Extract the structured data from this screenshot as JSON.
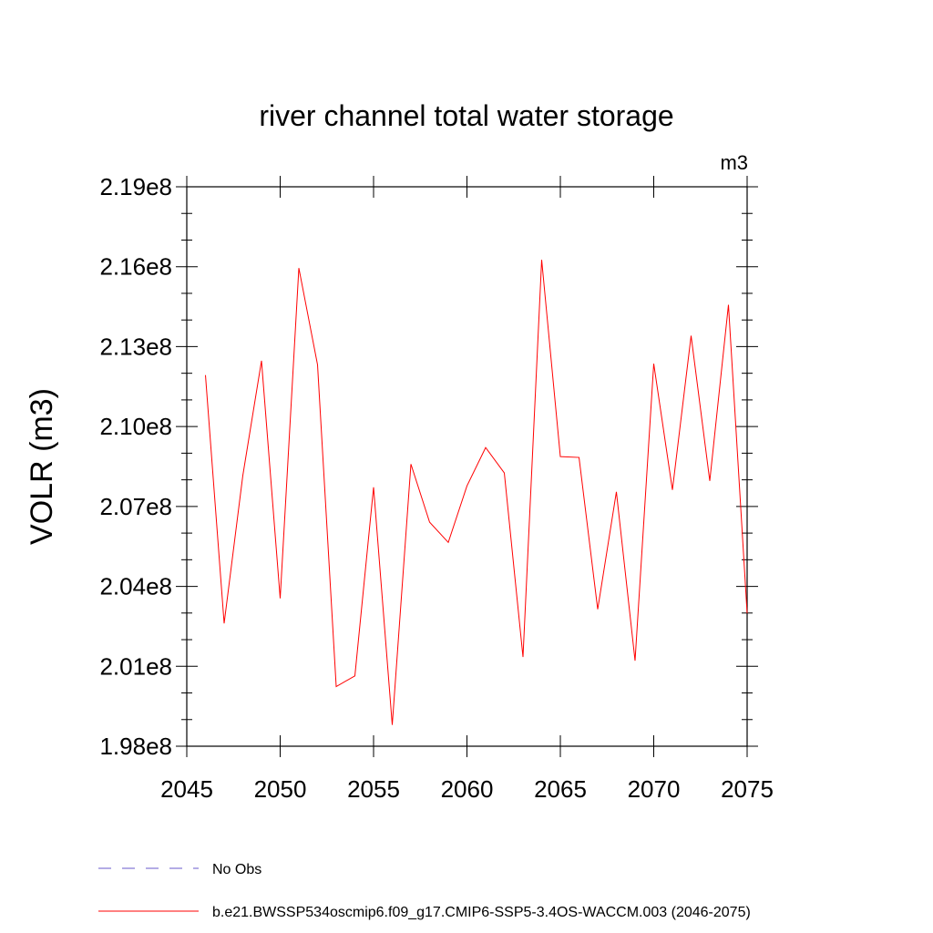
{
  "chart_data": {
    "type": "line",
    "title": "river channel total water storage",
    "units_label": "m3",
    "xlabel": "",
    "ylabel": "VOLR  (m3)",
    "xlim": [
      2045,
      2075
    ],
    "ylim": [
      198000000,
      219000000
    ],
    "x_ticks": [
      2045,
      2050,
      2055,
      2060,
      2065,
      2070,
      2075
    ],
    "x_tick_labels": [
      "2045",
      "2050",
      "2055",
      "2060",
      "2065",
      "2070",
      "2075"
    ],
    "y_ticks": [
      198000000,
      201000000,
      204000000,
      207000000,
      210000000,
      213000000,
      216000000,
      219000000
    ],
    "y_tick_labels": [
      "1.98e8",
      "2.01e8",
      "2.04e8",
      "2.07e8",
      "2.10e8",
      "2.13e8",
      "2.16e8",
      "2.19e8"
    ],
    "grid": false,
    "series": [
      {
        "name": "b.e21.BWSSP534oscmip6.f09_g17.CMIP6-SSP5-3.4OS-WACCM.003 (2046-2075)",
        "color": "#ff0000",
        "style": "solid",
        "x": [
          2046,
          2047,
          2048,
          2049,
          2050,
          2051,
          2052,
          2053,
          2054,
          2055,
          2056,
          2057,
          2058,
          2059,
          2060,
          2061,
          2062,
          2063,
          2064,
          2065,
          2066,
          2067,
          2068,
          2069,
          2070,
          2071,
          2072,
          2073,
          2074,
          2075
        ],
        "values": [
          211930000,
          202610000,
          208160000,
          212470000,
          203550000,
          215950000,
          212320000,
          200240000,
          200640000,
          207720000,
          198800000,
          208590000,
          206410000,
          205650000,
          207770000,
          209210000,
          208260000,
          201350000,
          216260000,
          208870000,
          208840000,
          203140000,
          207550000,
          201210000,
          212360000,
          207620000,
          213410000,
          207960000,
          214570000,
          202990000
        ]
      }
    ],
    "legend": {
      "position": "bottom-left",
      "entries": [
        {
          "label": "No Obs",
          "color": "#6a5acd",
          "style": "dashed"
        },
        {
          "label": "b.e21.BWSSP534oscmip6.f09_g17.CMIP6-SSP5-3.4OS-WACCM.003 (2046-2075)",
          "color": "#ff0000",
          "style": "solid"
        }
      ]
    }
  }
}
